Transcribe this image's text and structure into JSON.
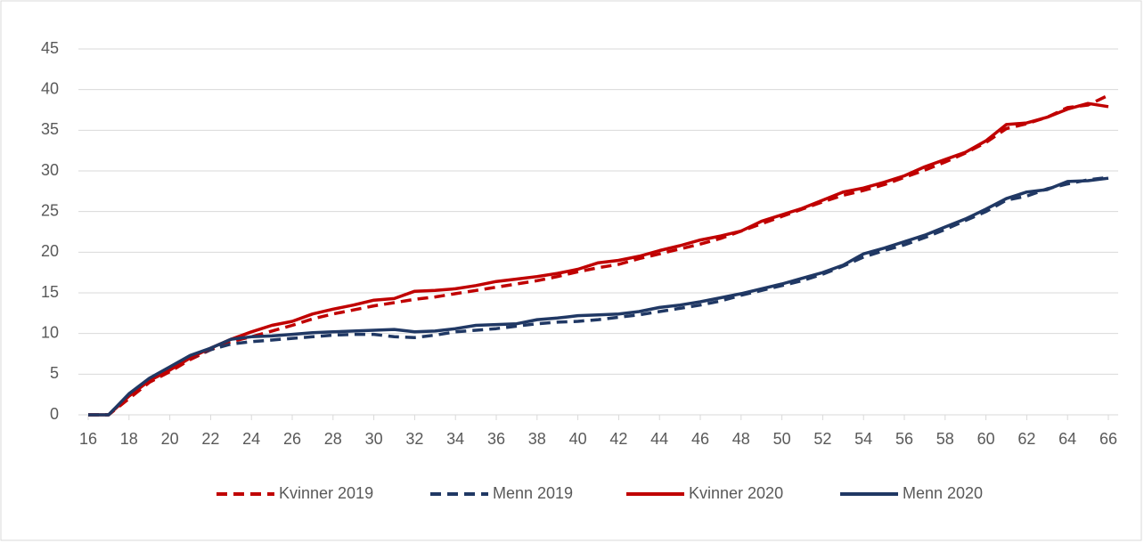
{
  "chart_data": {
    "type": "line",
    "x": [
      16,
      17,
      18,
      19,
      20,
      21,
      22,
      23,
      24,
      25,
      26,
      27,
      28,
      29,
      30,
      31,
      32,
      33,
      34,
      35,
      36,
      37,
      38,
      39,
      40,
      41,
      42,
      43,
      44,
      45,
      46,
      47,
      48,
      49,
      50,
      51,
      52,
      53,
      54,
      55,
      56,
      57,
      58,
      59,
      60,
      61,
      62,
      63,
      64,
      65,
      66
    ],
    "xlim": [
      16,
      66
    ],
    "xticks": [
      16,
      18,
      20,
      22,
      24,
      26,
      28,
      30,
      32,
      34,
      36,
      38,
      40,
      42,
      44,
      46,
      48,
      50,
      52,
      54,
      56,
      58,
      60,
      62,
      64,
      66
    ],
    "ylim": [
      0,
      45
    ],
    "yticks": [
      0,
      5,
      10,
      15,
      20,
      25,
      30,
      35,
      40,
      45
    ],
    "grid": true,
    "legend": "bottom",
    "series": [
      {
        "name": "Kvinner 2019",
        "color": "#c00000",
        "line_style": "dashed",
        "values": [
          0,
          0,
          2,
          4,
          5.3,
          6.8,
          8,
          9,
          9.6,
          10.3,
          11,
          11.8,
          12.4,
          12.9,
          13.4,
          13.8,
          14.2,
          14.5,
          14.9,
          15.3,
          15.7,
          16.1,
          16.5,
          17,
          17.6,
          18.1,
          18.5,
          19.2,
          19.8,
          20.4,
          21,
          21.7,
          22.6,
          23.5,
          24.4,
          25.3,
          26.2,
          27,
          27.6,
          28.3,
          29.2,
          30.1,
          31.1,
          32.2,
          33.5,
          35.2,
          35.8,
          36.6,
          37.8,
          38.1,
          39.3
        ]
      },
      {
        "name": "Menn 2019",
        "color": "#203864",
        "line_style": "dashed",
        "values": [
          0,
          0,
          2.5,
          4.3,
          5.7,
          7,
          8,
          8.7,
          9,
          9.2,
          9.4,
          9.6,
          9.8,
          9.9,
          9.9,
          9.6,
          9.5,
          9.8,
          10.2,
          10.4,
          10.6,
          10.9,
          11.2,
          11.4,
          11.5,
          11.7,
          12,
          12.3,
          12.7,
          13.1,
          13.5,
          14,
          14.7,
          15.3,
          15.9,
          16.5,
          17.3,
          18.3,
          19.4,
          20.2,
          20.9,
          21.8,
          22.8,
          23.9,
          25,
          26.4,
          26.9,
          27.8,
          28.4,
          28.9,
          29.2
        ]
      },
      {
        "name": "Kvinner 2020",
        "color": "#c00000",
        "line_style": "solid",
        "values": [
          0,
          0,
          2.3,
          4.2,
          5.5,
          7,
          8.2,
          9.3,
          10.2,
          11,
          11.5,
          12.4,
          13,
          13.5,
          14.1,
          14.3,
          15.2,
          15.3,
          15.5,
          15.9,
          16.4,
          16.7,
          17,
          17.4,
          17.9,
          18.7,
          19,
          19.5,
          20.2,
          20.8,
          21.5,
          22,
          22.6,
          23.8,
          24.6,
          25.4,
          26.4,
          27.4,
          27.9,
          28.6,
          29.4,
          30.5,
          31.4,
          32.3,
          33.7,
          35.7,
          35.9,
          36.6,
          37.6,
          38.3,
          37.9
        ]
      },
      {
        "name": "Menn 2020",
        "color": "#203864",
        "line_style": "solid",
        "values": [
          0,
          0,
          2.6,
          4.5,
          5.9,
          7.3,
          8.2,
          9.3,
          9.6,
          9.7,
          9.9,
          10.1,
          10.2,
          10.3,
          10.4,
          10.5,
          10.2,
          10.3,
          10.6,
          11,
          11.1,
          11.2,
          11.7,
          11.9,
          12.2,
          12.3,
          12.4,
          12.7,
          13.2,
          13.5,
          13.9,
          14.4,
          14.9,
          15.5,
          16.1,
          16.8,
          17.5,
          18.4,
          19.8,
          20.5,
          21.3,
          22.1,
          23.1,
          24.1,
          25.3,
          26.6,
          27.4,
          27.7,
          28.7,
          28.8,
          29.1
        ]
      }
    ]
  }
}
